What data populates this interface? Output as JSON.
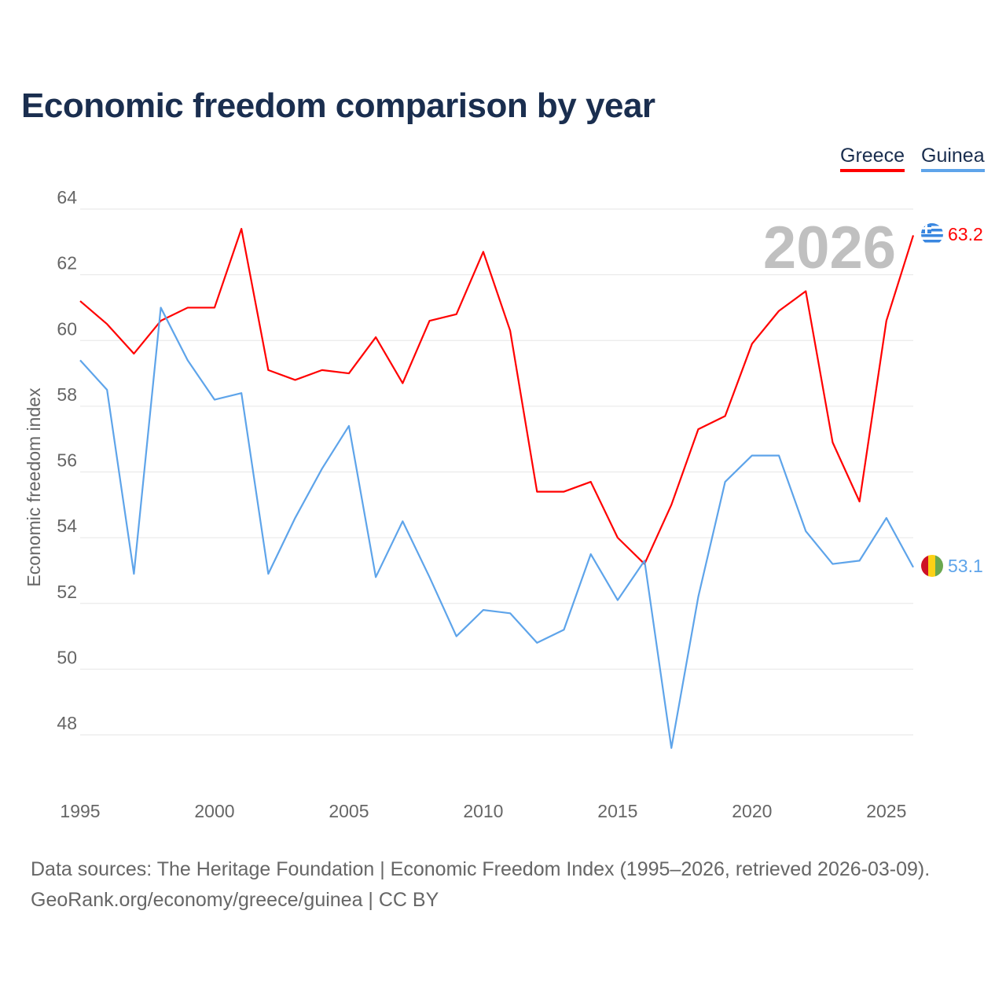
{
  "title": "Economic freedom comparison by year",
  "source_line1": "Data sources: The Heritage Foundation | Economic Freedom Index (1995–2026, retrieved 2026-03-09).",
  "source_line2": "GeoRank.org/economy/greece/guinea | CC BY",
  "chart_data": {
    "type": "line",
    "title": "Economic freedom comparison by year",
    "xlabel": "",
    "ylabel": "Economic freedom index",
    "year_watermark": "2026",
    "xlim": [
      1995,
      2026
    ],
    "ylim": [
      46.5,
      64
    ],
    "xticks": [
      1995,
      2000,
      2005,
      2010,
      2015,
      2020,
      2025
    ],
    "yticks": [
      48,
      50,
      52,
      54,
      56,
      58,
      60,
      62,
      64
    ],
    "grid": true,
    "legend_placement": "top-right",
    "x": [
      1995,
      1996,
      1997,
      1998,
      1999,
      2000,
      2001,
      2002,
      2003,
      2004,
      2005,
      2006,
      2007,
      2008,
      2009,
      2010,
      2011,
      2012,
      2013,
      2014,
      2015,
      2016,
      2017,
      2018,
      2019,
      2020,
      2021,
      2022,
      2023,
      2024,
      2025,
      2026
    ],
    "series": [
      {
        "name": "Greece",
        "color": "#ff0000",
        "end_label": "63.2",
        "values": [
          61.2,
          60.5,
          59.6,
          60.6,
          61.0,
          61.0,
          63.4,
          59.1,
          58.8,
          59.1,
          59.0,
          60.1,
          58.7,
          60.6,
          60.8,
          62.7,
          60.3,
          55.4,
          55.4,
          55.7,
          54.0,
          53.2,
          55.0,
          57.3,
          57.7,
          59.9,
          60.9,
          61.5,
          56.9,
          55.1,
          60.6,
          63.2
        ]
      },
      {
        "name": "Guinea",
        "color": "#5ea4ea",
        "end_label": "53.1",
        "values": [
          59.4,
          58.5,
          52.9,
          61.0,
          59.4,
          58.2,
          58.4,
          52.9,
          54.6,
          56.1,
          57.4,
          52.8,
          54.5,
          52.8,
          51.0,
          51.8,
          51.7,
          50.8,
          51.2,
          53.5,
          52.1,
          53.3,
          47.6,
          52.2,
          55.7,
          56.5,
          56.5,
          54.2,
          53.2,
          53.3,
          54.6,
          53.1
        ]
      }
    ]
  }
}
